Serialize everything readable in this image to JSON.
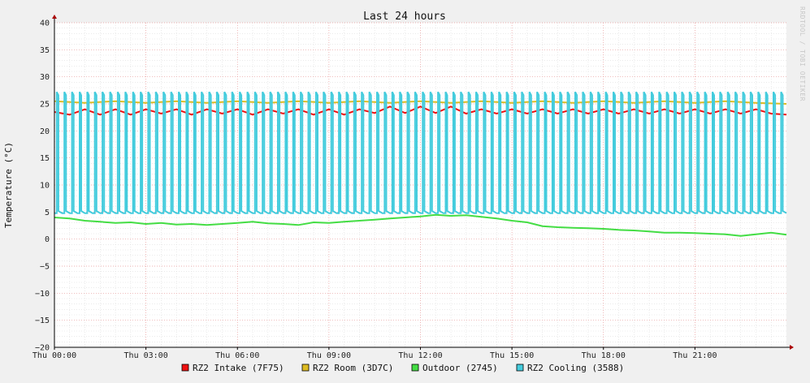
{
  "chart_data": {
    "type": "line",
    "title": "Last 24 hours",
    "ylabel": "Temperature (°C)",
    "watermark": "RRDTOOL / TOBI OETIKER",
    "ylim": [
      -20,
      40
    ],
    "yticks": [
      40,
      35,
      30,
      25,
      20,
      15,
      10,
      5,
      0,
      -5,
      -10,
      -15,
      -20
    ],
    "xlim_hours": [
      0,
      24
    ],
    "xticks": [
      {
        "hour": 0,
        "label": "Thu 00:00"
      },
      {
        "hour": 3,
        "label": "Thu 03:00"
      },
      {
        "hour": 6,
        "label": "Thu 06:00"
      },
      {
        "hour": 9,
        "label": "Thu 09:00"
      },
      {
        "hour": 12,
        "label": "Thu 12:00"
      },
      {
        "hour": 15,
        "label": "Thu 15:00"
      },
      {
        "hour": 18,
        "label": "Thu 18:00"
      },
      {
        "hour": 21,
        "label": "Thu 21:00"
      }
    ],
    "grid": true,
    "legend_position": "bottom",
    "series": [
      {
        "name": "RZ2 Intake (7F75)",
        "color": "#ee1111",
        "x": [
          0,
          0.5,
          1,
          1.5,
          2,
          2.5,
          3,
          3.5,
          4,
          4.5,
          5,
          5.5,
          6,
          6.5,
          7,
          7.5,
          8,
          8.5,
          9,
          9.5,
          10,
          10.5,
          11,
          11.5,
          12,
          12.5,
          13,
          13.5,
          14,
          14.5,
          15,
          15.5,
          16,
          16.5,
          17,
          17.5,
          18,
          18.5,
          19,
          19.5,
          20,
          20.5,
          21,
          21.5,
          22,
          22.5,
          23,
          23.5,
          24
        ],
        "values": [
          23.5,
          23,
          24,
          23,
          24,
          23,
          24,
          23.2,
          24,
          23,
          24,
          23.2,
          24,
          23,
          24,
          23.2,
          24,
          23,
          24,
          23,
          24,
          23.3,
          24.5,
          23.3,
          24.5,
          23.3,
          24.5,
          23.2,
          24,
          23.2,
          24,
          23.2,
          24,
          23.2,
          24,
          23.2,
          24,
          23.2,
          24,
          23.2,
          24,
          23.2,
          24,
          23.2,
          24,
          23.2,
          24,
          23.2,
          23
        ]
      },
      {
        "name": "RZ2 Room (3D7C)",
        "color": "#ddbb22",
        "x": [
          0,
          1,
          2,
          3,
          4,
          5,
          6,
          7,
          8,
          9,
          10,
          11,
          12,
          13,
          14,
          15,
          16,
          17,
          18,
          19,
          20,
          21,
          22,
          23,
          24
        ],
        "values": [
          25.5,
          25.2,
          25.5,
          25.2,
          25.5,
          25.2,
          25.5,
          25.2,
          25.5,
          25.2,
          25.5,
          25.2,
          25.5,
          25.2,
          25.5,
          25.2,
          25.5,
          25.2,
          25.5,
          25.2,
          25.5,
          25.2,
          25.5,
          25.2,
          25
        ]
      },
      {
        "name": "Outdoor (2745)",
        "color": "#44dd44",
        "x": [
          0,
          0.5,
          1,
          1.5,
          2,
          2.5,
          3,
          3.5,
          4,
          4.5,
          5,
          5.5,
          6,
          6.5,
          7,
          7.5,
          8,
          8.5,
          9,
          9.5,
          10,
          10.5,
          11,
          11.5,
          12,
          12.5,
          13,
          13.5,
          14,
          14.5,
          15,
          15.5,
          16,
          16.5,
          17,
          17.5,
          18,
          18.5,
          19,
          19.5,
          20,
          20.5,
          21,
          21.5,
          22,
          22.5,
          23,
          23.5,
          24
        ],
        "values": [
          4,
          3.8,
          3.4,
          3.2,
          3,
          3.1,
          2.8,
          3,
          2.7,
          2.8,
          2.6,
          2.8,
          3,
          3.2,
          2.9,
          2.8,
          2.6,
          3.1,
          3,
          3.2,
          3.4,
          3.6,
          3.8,
          4,
          4.2,
          4.5,
          4.3,
          4.4,
          4.1,
          3.8,
          3.4,
          3.1,
          2.4,
          2.2,
          2.1,
          2,
          1.9,
          1.7,
          1.6,
          1.4,
          1.2,
          1.2,
          1.1,
          1,
          0.9,
          0.6,
          0.9,
          1.2,
          0.8
        ]
      },
      {
        "name": "RZ2 Cooling (3588)",
        "color": "#44ccdd",
        "x": [
          0,
          24
        ],
        "values": [
          5,
          5
        ],
        "pattern": {
          "period_hours": 0.25,
          "low": 4.8,
          "high": 27.2,
          "high_fraction": 0.22
        }
      }
    ]
  }
}
